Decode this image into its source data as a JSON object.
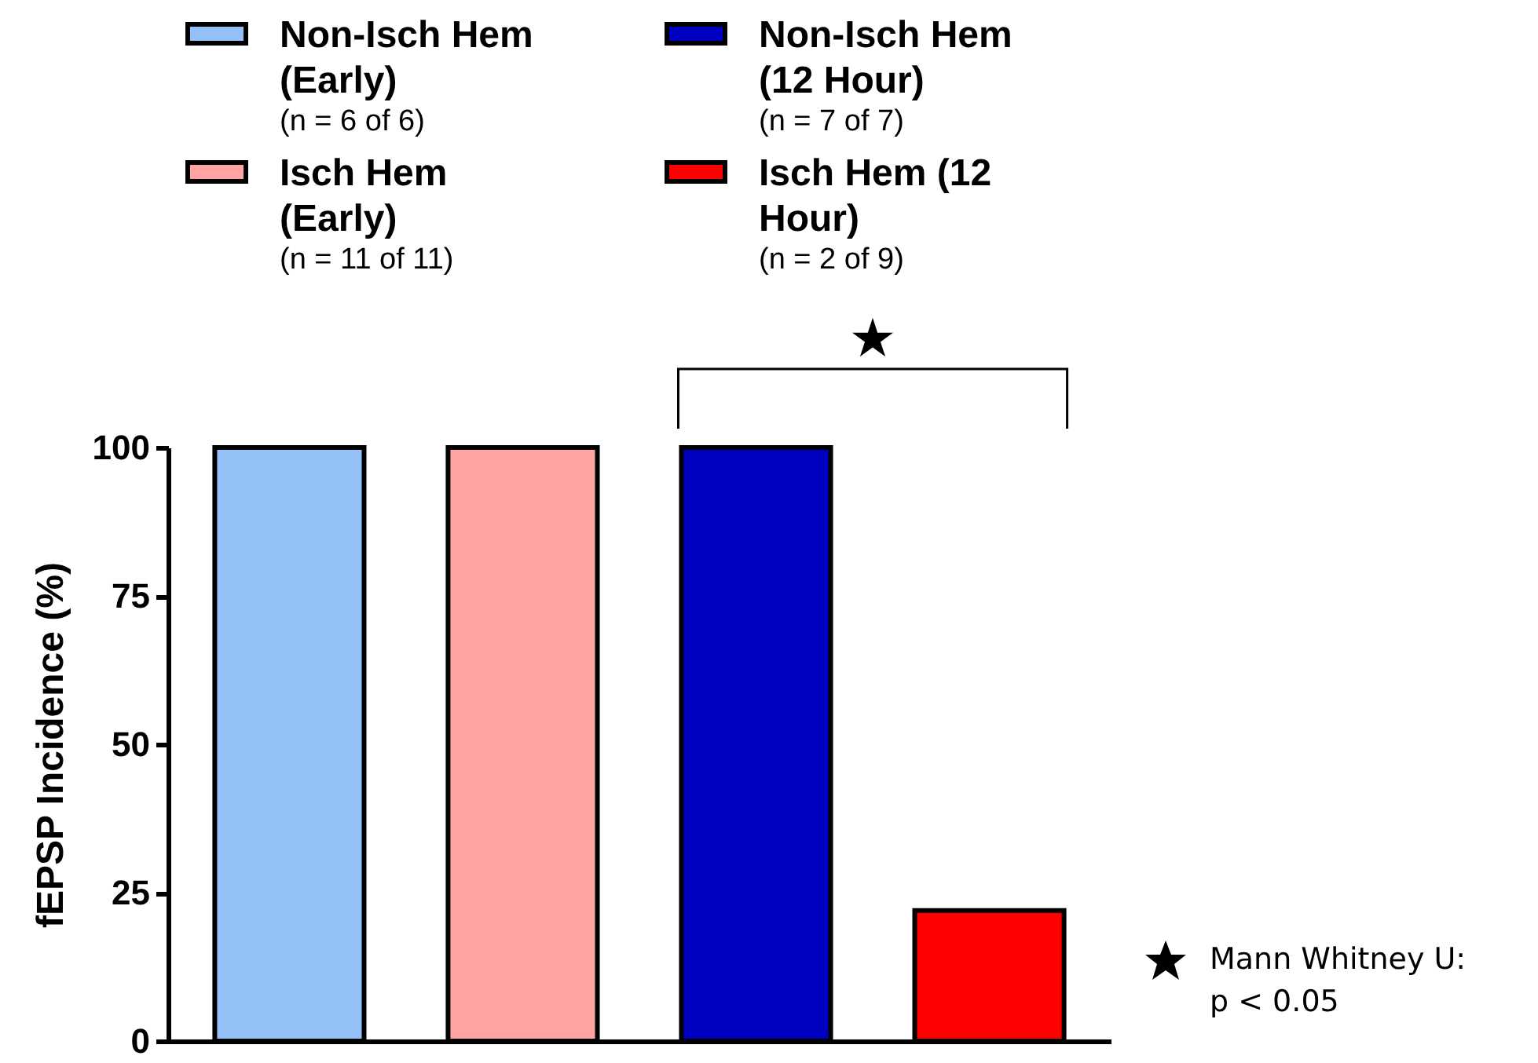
{
  "chart_data": {
    "type": "bar",
    "ylabel": "fEPSP Incidence (%)",
    "categories": [
      null,
      null,
      null,
      null
    ],
    "series": [
      {
        "name": "Non-Isch Hem (Early)",
        "color": "#94c0f8",
        "values": [
          100,
          null,
          null,
          null
        ]
      },
      {
        "name": "Isch Hem (Early)",
        "color": "#ffa3a3",
        "values": [
          null,
          100,
          null,
          null
        ]
      },
      {
        "name": "Non-Isch Hem (12 Hour)",
        "color": "#0000c0",
        "values": [
          null,
          null,
          100,
          null
        ]
      },
      {
        "name": "Isch Hem (12 Hour)",
        "color": "#ff0000",
        "values": [
          null,
          null,
          null,
          22
        ]
      }
    ],
    "ylim": [
      0,
      100
    ],
    "yticks": [
      0,
      25,
      50,
      75,
      100
    ],
    "grid": false,
    "legend": "top",
    "annotations": [
      "(n = 6 of 6)",
      "(n = 11 of 11)",
      "(n = 7 of 7)",
      "(n = 2 of 9)",
      "★",
      "Mann Whitney U:",
      "p < 0.05"
    ]
  }
}
